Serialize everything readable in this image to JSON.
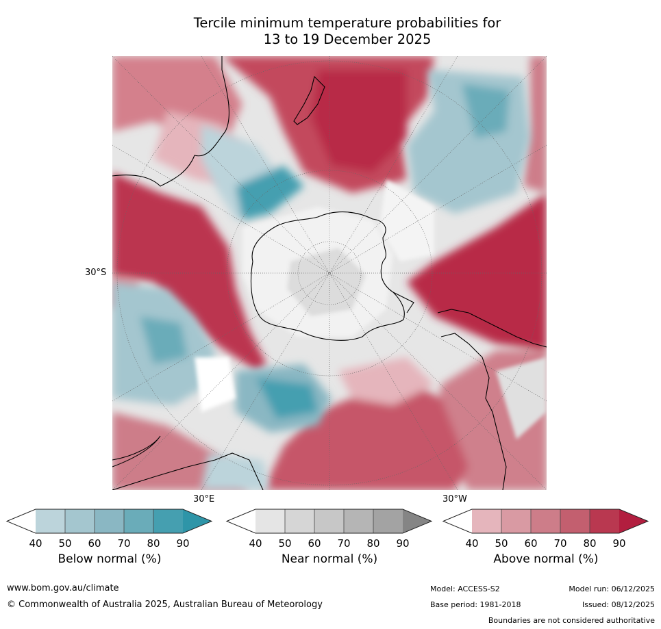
{
  "title": {
    "line1": "Tercile minimum temperature probabilities for",
    "line2": "13 to 19 December 2025"
  },
  "map": {
    "projection": "south polar stereographic",
    "labels": {
      "lat_30s": "30°S",
      "lon_30e": "30°E",
      "lon_30w": "30°W"
    },
    "colors": {
      "ocean_base": "#e8e8e8",
      "land_line": "#000000",
      "border_line": "#888888",
      "graticule": "#777777"
    }
  },
  "colorbars": [
    {
      "name": "Below normal (%)",
      "ticks": [
        "40",
        "50",
        "60",
        "70",
        "80",
        "90"
      ],
      "colors": [
        "#ffffff",
        "#bcd4db",
        "#a4c6cf",
        "#8ab7c3",
        "#6aacb9",
        "#459fb0",
        "#2e95a8"
      ]
    },
    {
      "name": "Near normal (%)",
      "ticks": [
        "40",
        "50",
        "60",
        "70",
        "80",
        "90"
      ],
      "colors": [
        "#ffffff",
        "#e5e5e5",
        "#d6d6d6",
        "#c7c7c7",
        "#b5b5b5",
        "#a3a3a3",
        "#858585"
      ]
    },
    {
      "name": "Above normal (%)",
      "ticks": [
        "40",
        "50",
        "60",
        "70",
        "80",
        "90"
      ],
      "colors": [
        "#ffffff",
        "#e5b5bc",
        "#d99aa3",
        "#cd7d89",
        "#c35f6f",
        "#b93850",
        "#b21e3f"
      ]
    }
  ],
  "footer": {
    "url": "www.bom.gov.au/climate",
    "copyright": "© Commonwealth of Australia 2025, Australian Bureau of Meteorology",
    "model": "Model: ACCESS-S2",
    "model_run": "Model run: 06/12/2025",
    "base_period": "Base period: 1981-2018",
    "issued": "Issued: 08/12/2025",
    "disclaimer": "Boundaries are not considered authoritative"
  }
}
